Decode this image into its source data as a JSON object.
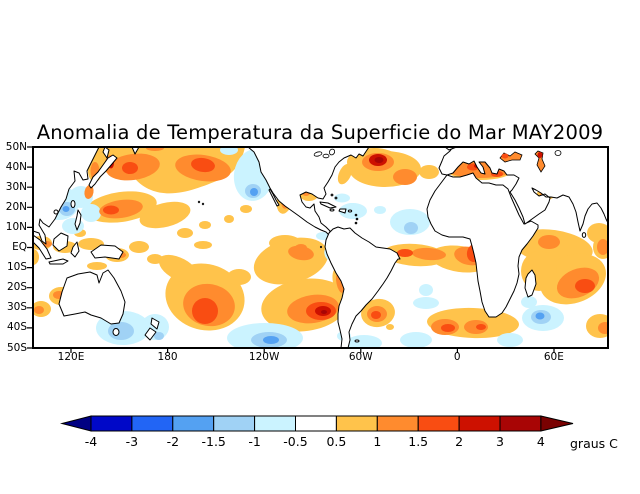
{
  "title": "Anomalia de Temperatura da Superficie do Mar MAY2009",
  "map": {
    "lat_labels": [
      "50N",
      "40N",
      "30N",
      "20N",
      "10N",
      "EQ",
      "10S",
      "20S",
      "30S",
      "40S",
      "50S"
    ],
    "lon_labels": [
      "120E",
      "180",
      "120W",
      "60W",
      "0",
      "60E"
    ]
  },
  "colorbar": {
    "tick_labels": [
      "-4",
      "-3",
      "-2",
      "-1.5",
      "-1",
      "-0.5",
      "0.5",
      "1",
      "1.5",
      "2",
      "3",
      "4"
    ],
    "unit_label": "graus C",
    "segment_colors": [
      "#0008C8",
      "#2265F5",
      "#54A1F2",
      "#A0D2F5",
      "#CBF3FF",
      "#FFFFFF",
      "#FFC34B",
      "#FF8B2E",
      "#F94D12",
      "#CD1100",
      "#A80505"
    ],
    "left_arrow_color": "#000082",
    "right_arrow_color": "#7A0101"
  },
  "palette": {
    "warm_light": "#FFC34B",
    "warm_mid": "#FF8B2E",
    "warm_hot": "#F94D12",
    "warm_red": "#CD1100",
    "warm_dark": "#A80505",
    "cool_pale": "#CBF3FF",
    "cool_light": "#A0D2F5",
    "cool_medium": "#54A1F2"
  }
}
